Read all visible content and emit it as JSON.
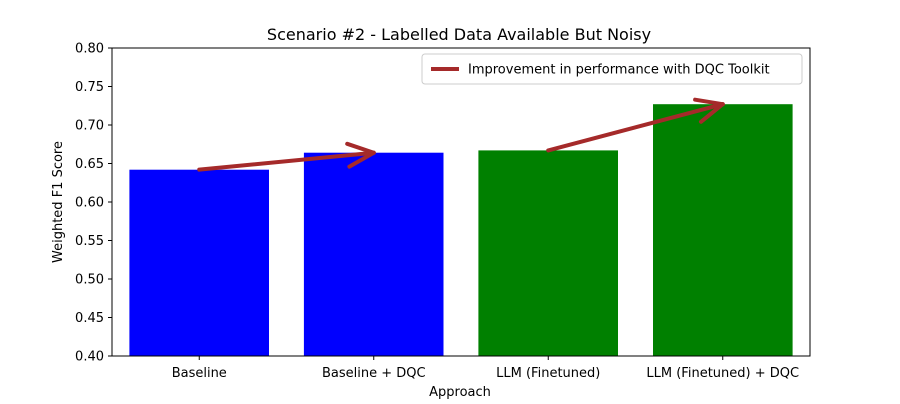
{
  "chart_data": {
    "type": "bar",
    "title": "Scenario #2 -  Labelled Data Available But Noisy",
    "xlabel": "Approach",
    "ylabel": "Weighted F1 Score",
    "ylim": [
      0.4,
      0.8
    ],
    "yticks": [
      "0.40",
      "0.45",
      "0.50",
      "0.55",
      "0.60",
      "0.65",
      "0.70",
      "0.75",
      "0.80"
    ],
    "grid": false,
    "categories": [
      "Baseline",
      "Baseline + DQC",
      "LLM (Finetuned)",
      "LLM (Finetuned) + DQC"
    ],
    "values": [
      0.642,
      0.664,
      0.667,
      0.727
    ],
    "bar_colors": [
      "#0000ff",
      "#0000ff",
      "#008000",
      "#008000"
    ],
    "arrows": [
      {
        "from_category": 0,
        "to_category": 1,
        "from_value": 0.642,
        "to_value": 0.664
      },
      {
        "from_category": 2,
        "to_category": 3,
        "from_value": 0.667,
        "to_value": 0.727
      }
    ],
    "arrow_color": "#a52a2a",
    "legend": {
      "placement": "top-right",
      "label": "Improvement in performance with DQC Toolkit"
    }
  }
}
